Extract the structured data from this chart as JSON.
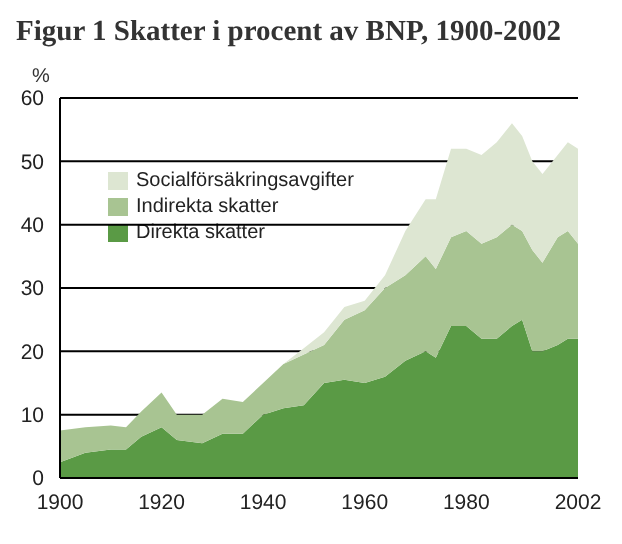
{
  "chart_data": {
    "type": "area",
    "title": "Figur 1 Skatter i procent av BNP, 1900-2002",
    "ylabel": "%",
    "stacked": true,
    "x": [
      1900,
      1905,
      1910,
      1913,
      1916,
      1920,
      1923,
      1928,
      1932,
      1936,
      1940,
      1944,
      1948,
      1952,
      1956,
      1960,
      1964,
      1968,
      1972,
      1974,
      1977,
      1980,
      1983,
      1986,
      1989,
      1991,
      1993,
      1995,
      1998,
      2000,
      2002
    ],
    "series": [
      {
        "name": "Direkta skatter",
        "color": "#5a9a45",
        "values": [
          2.5,
          4,
          4.5,
          4.5,
          6.5,
          8,
          6,
          5.5,
          7,
          7,
          10,
          11,
          11.5,
          15,
          15.5,
          15,
          16,
          18.5,
          20,
          19,
          24,
          24,
          22,
          22,
          24,
          25,
          20,
          20,
          21,
          22,
          22
        ]
      },
      {
        "name": "Indirekta skatter",
        "color": "#a8c492",
        "values": [
          5,
          4,
          3.8,
          3.5,
          4,
          5.5,
          4,
          4.5,
          5.5,
          5,
          5,
          7,
          8,
          6,
          9.5,
          11.5,
          14,
          13.5,
          15,
          14,
          14,
          15,
          15,
          16,
          16,
          14,
          16,
          14,
          17,
          17,
          15
        ]
      },
      {
        "name": "Socialförsäkringsavgifter",
        "color": "#dde6d2",
        "values": [
          0,
          0,
          0,
          0,
          0,
          0,
          0,
          0,
          0,
          0,
          0,
          0,
          1,
          2,
          2,
          1.5,
          2,
          7,
          9,
          11,
          14,
          13,
          14,
          15,
          16,
          15,
          14,
          14,
          13,
          14,
          15
        ]
      }
    ],
    "xlim": [
      1900,
      2002
    ],
    "xticks": [
      1900,
      1920,
      1940,
      1960,
      1980,
      2002
    ],
    "ylim": [
      0,
      60
    ],
    "yticks": [
      0,
      10,
      20,
      30,
      40,
      50,
      60
    ],
    "grid": "y",
    "legend": "top left"
  }
}
